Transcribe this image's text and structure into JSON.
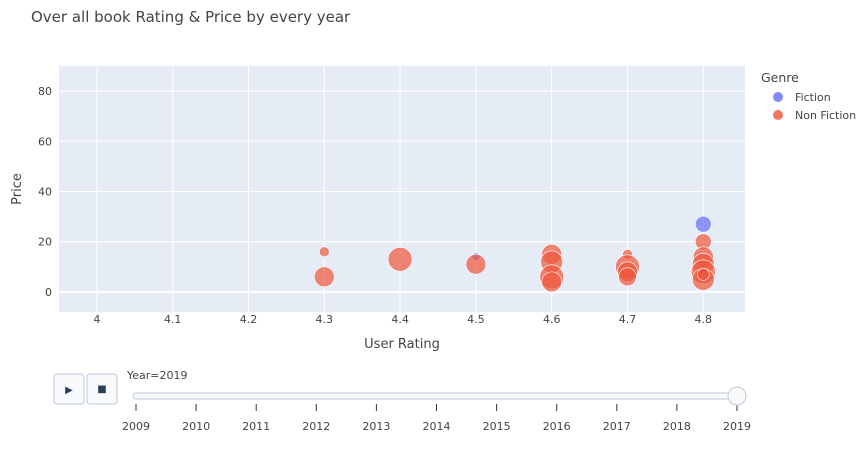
{
  "chart_data": {
    "type": "scatter",
    "title": "Over all book Rating & Price by every year",
    "xlabel": "User Rating",
    "ylabel": "Price",
    "xlim": [
      3.95,
      4.855
    ],
    "ylim": [
      -8,
      90
    ],
    "x_ticks": [
      "4",
      "4.1",
      "4.2",
      "4.3",
      "4.4",
      "4.5",
      "4.6",
      "4.7",
      "4.8"
    ],
    "y_ticks": [
      "0",
      "20",
      "40",
      "60",
      "80"
    ],
    "grid": true,
    "legend": {
      "title": "Genre",
      "placement": "top-right",
      "items": [
        {
          "label": "Fiction",
          "color": "#636efa"
        },
        {
          "label": "Non Fiction",
          "color": "#ef553b"
        }
      ]
    },
    "series": [
      {
        "name": "Fiction",
        "color": "#636efa",
        "points": [
          {
            "x": 4.8,
            "y": 27,
            "size": 8
          },
          {
            "x": 4.5,
            "y": 14,
            "size": 4
          }
        ]
      },
      {
        "name": "Non Fiction",
        "color": "#ef553b",
        "points": [
          {
            "x": 4.3,
            "y": 16,
            "size": 5
          },
          {
            "x": 4.3,
            "y": 6,
            "size": 10
          },
          {
            "x": 4.4,
            "y": 13,
            "size": 12
          },
          {
            "x": 4.5,
            "y": 11,
            "size": 10
          },
          {
            "x": 4.6,
            "y": 15,
            "size": 10
          },
          {
            "x": 4.6,
            "y": 12,
            "size": 11
          },
          {
            "x": 4.6,
            "y": 6,
            "size": 12
          },
          {
            "x": 4.6,
            "y": 4,
            "size": 10
          },
          {
            "x": 4.7,
            "y": 15,
            "size": 5
          },
          {
            "x": 4.7,
            "y": 10,
            "size": 12
          },
          {
            "x": 4.7,
            "y": 8,
            "size": 10
          },
          {
            "x": 4.7,
            "y": 6,
            "size": 9
          },
          {
            "x": 4.8,
            "y": 20,
            "size": 8
          },
          {
            "x": 4.8,
            "y": 14,
            "size": 10
          },
          {
            "x": 4.8,
            "y": 11,
            "size": 11
          },
          {
            "x": 4.8,
            "y": 8,
            "size": 12
          },
          {
            "x": 4.8,
            "y": 5,
            "size": 11
          },
          {
            "x": 4.8,
            "y": 7,
            "size": 6
          }
        ]
      }
    ]
  },
  "slider": {
    "current_label": "Year=2019",
    "years": [
      "2009",
      "2010",
      "2011",
      "2012",
      "2013",
      "2014",
      "2015",
      "2016",
      "2017",
      "2018",
      "2019"
    ],
    "selected": "2019"
  },
  "controls": {
    "play_symbol": "▶",
    "stop_symbol": "■"
  }
}
